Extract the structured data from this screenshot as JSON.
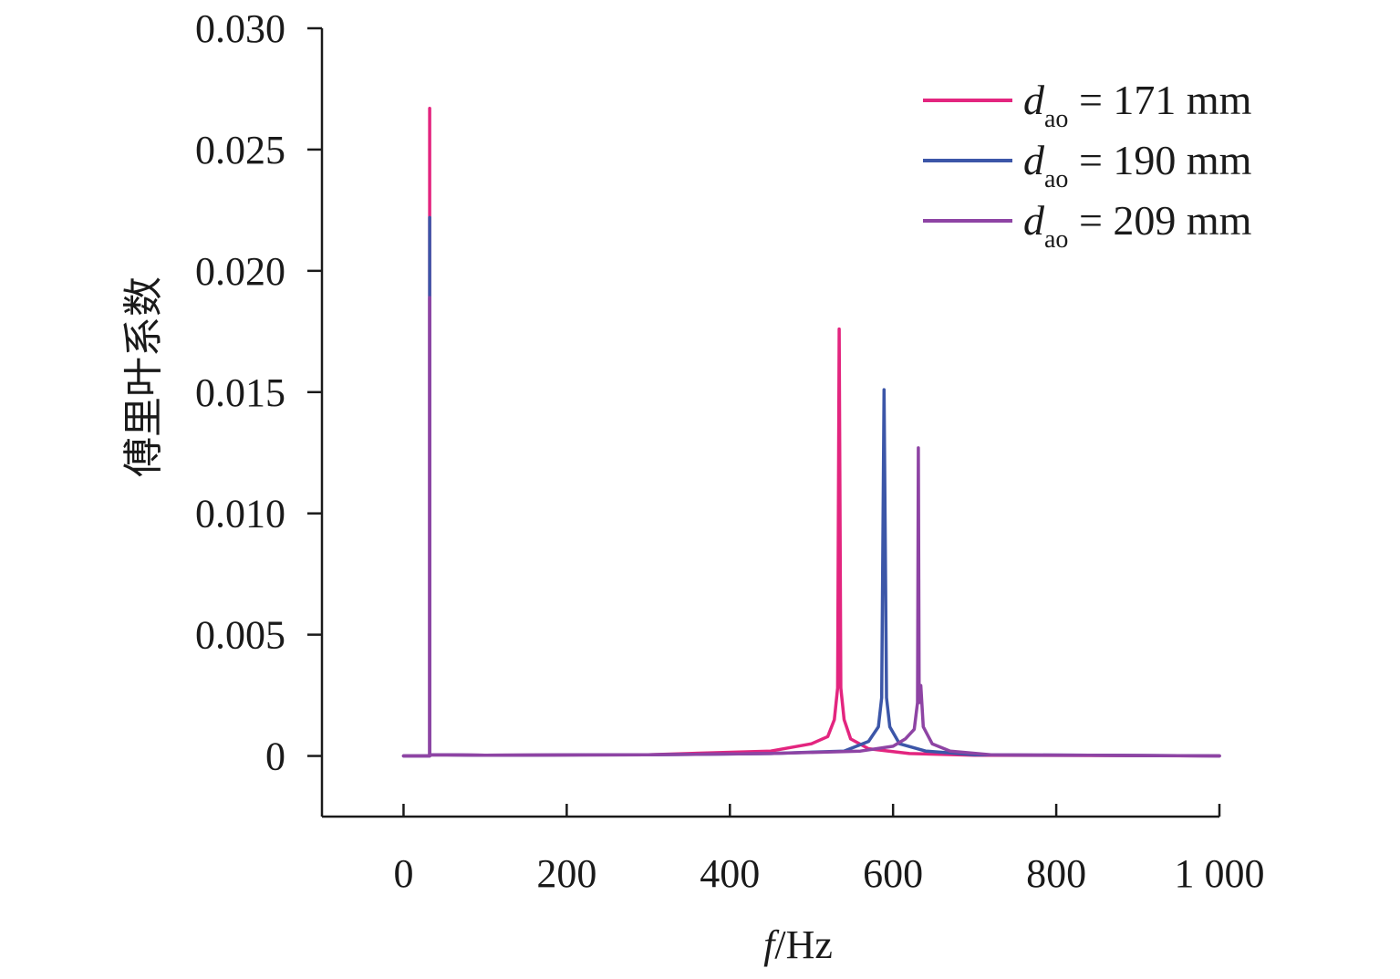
{
  "chart_data": {
    "type": "line",
    "title": "",
    "xlabel": {
      "italic": "f",
      "rest": "/Hz"
    },
    "ylabel": "傅里叶系数",
    "xlim": [
      -100,
      1000
    ],
    "ylim": [
      -0.0025,
      0.03
    ],
    "xticks": [
      0,
      200,
      400,
      600,
      800,
      1000
    ],
    "xtick_labels": [
      "0",
      "200",
      "400",
      "600",
      "800",
      "1 000"
    ],
    "yticks": [
      0,
      0.005,
      0.01,
      0.015,
      0.02,
      0.025,
      0.03
    ],
    "ytick_labels": [
      "0",
      "0.005",
      "0.010",
      "0.015",
      "0.020",
      "0.025",
      "0.030"
    ],
    "grid": false,
    "legend_position": "top-right",
    "series": [
      {
        "name": "d_ao = 171 mm",
        "legend": {
          "italic": "d",
          "sub": "ao",
          "rest": " = 171 mm"
        },
        "color": "#e3257f",
        "points": [
          [
            0,
            0
          ],
          [
            32,
            0
          ],
          [
            32,
            0.0267
          ],
          [
            32,
            5e-05
          ],
          [
            100,
            3e-05
          ],
          [
            300,
            5e-05
          ],
          [
            450,
            0.0002
          ],
          [
            500,
            0.0005
          ],
          [
            520,
            0.0008
          ],
          [
            528,
            0.0015
          ],
          [
            532,
            0.0028
          ],
          [
            534,
            0.0176
          ],
          [
            536,
            0.0028
          ],
          [
            540,
            0.0015
          ],
          [
            548,
            0.0007
          ],
          [
            570,
            0.0003
          ],
          [
            620,
            0.0001
          ],
          [
            700,
            3e-05
          ],
          [
            1000,
            0
          ]
        ]
      },
      {
        "name": "d_ao = 190 mm",
        "legend": {
          "italic": "d",
          "sub": "ao",
          "rest": " = 190 mm"
        },
        "color": "#3c56a8",
        "points": [
          [
            0,
            0
          ],
          [
            32,
            0
          ],
          [
            32,
            0.0222
          ],
          [
            32,
            5e-05
          ],
          [
            100,
            3e-05
          ],
          [
            300,
            5e-05
          ],
          [
            450,
            0.0001
          ],
          [
            540,
            0.0002
          ],
          [
            570,
            0.0006
          ],
          [
            582,
            0.0012
          ],
          [
            586,
            0.0024
          ],
          [
            589,
            0.0151
          ],
          [
            592,
            0.0024
          ],
          [
            596,
            0.0012
          ],
          [
            608,
            0.0005
          ],
          [
            640,
            0.0002
          ],
          [
            700,
            5e-05
          ],
          [
            1000,
            0
          ]
        ]
      },
      {
        "name": "d_ao = 209 mm",
        "legend": {
          "italic": "d",
          "sub": "ao",
          "rest": " = 209 mm"
        },
        "color": "#8e44a4",
        "points": [
          [
            0,
            0
          ],
          [
            32,
            0
          ],
          [
            32,
            0.0189
          ],
          [
            32,
            5e-05
          ],
          [
            100,
            3e-05
          ],
          [
            300,
            5e-05
          ],
          [
            450,
            0.0001
          ],
          [
            560,
            0.0002
          ],
          [
            600,
            0.0004
          ],
          [
            615,
            0.0007
          ],
          [
            626,
            0.0011
          ],
          [
            630,
            0.0022
          ],
          [
            631,
            0.0127
          ],
          [
            632,
            0.0022
          ],
          [
            634,
            0.0029
          ],
          [
            637,
            0.0012
          ],
          [
            648,
            0.0005
          ],
          [
            670,
            0.0002
          ],
          [
            720,
            5e-05
          ],
          [
            1000,
            0
          ]
        ]
      }
    ]
  }
}
